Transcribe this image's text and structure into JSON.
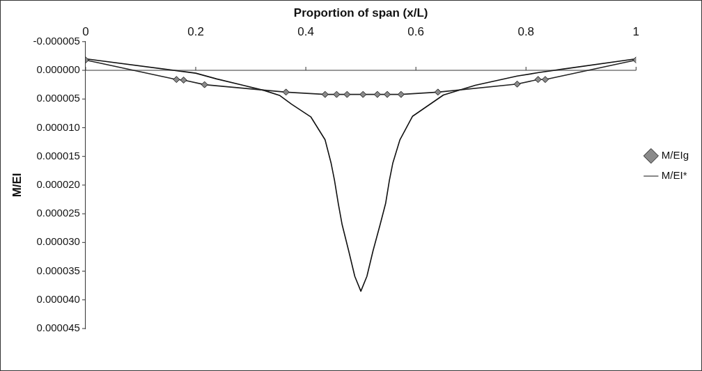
{
  "chart_data": {
    "type": "line",
    "xlabel": "Proportion of span (x/L)",
    "ylabel": "M/EI",
    "xlim": [
      0,
      1
    ],
    "xticks": [
      0,
      0.2,
      0.4,
      0.6,
      0.8,
      1
    ],
    "ylim": [
      4.5e-05,
      -5e-06
    ],
    "yticks": [
      {
        "value": -5e-06,
        "label": "-0.000005"
      },
      {
        "value": 0,
        "label": "0.000000"
      },
      {
        "value": 5e-06,
        "label": "0.000005"
      },
      {
        "value": 1e-05,
        "label": "0.000010"
      },
      {
        "value": 1.5e-05,
        "label": "0.000015"
      },
      {
        "value": 2e-05,
        "label": "0.000020"
      },
      {
        "value": 2.5e-05,
        "label": "0.000025"
      },
      {
        "value": 3e-05,
        "label": "0.000030"
      },
      {
        "value": 3.5e-05,
        "label": "0.000035"
      },
      {
        "value": 4e-05,
        "label": "0.000040"
      },
      {
        "value": 4.5e-05,
        "label": "0.000045"
      }
    ],
    "grid": false,
    "legend": "right",
    "ref_lines": [
      {
        "axis": "y",
        "value": 0,
        "color": "#333333"
      }
    ],
    "series": [
      {
        "name": "M/EIg",
        "color": "#222222",
        "marker": "diamond",
        "x": [
          0,
          0.165,
          0.178,
          0.216,
          0.364,
          0.435,
          0.456,
          0.475,
          0.504,
          0.53,
          0.548,
          0.573,
          0.64,
          0.784,
          0.822,
          0.835,
          1
        ],
        "values": [
          -1.8e-06,
          1.6e-06,
          1.7e-06,
          2.5e-06,
          3.8e-06,
          4.2e-06,
          4.2e-06,
          4.2e-06,
          4.2e-06,
          4.2e-06,
          4.2e-06,
          4.2e-06,
          3.8e-06,
          2.4e-06,
          1.6e-06,
          1.6e-06,
          -1.8e-06
        ]
      },
      {
        "name": "M/EI*",
        "color": "#111111",
        "marker": "none",
        "x": [
          0,
          0.2,
          0.238,
          0.286,
          0.324,
          0.353,
          0.374,
          0.409,
          0.435,
          0.446,
          0.452,
          0.459,
          0.466,
          0.478,
          0.489,
          0.5,
          0.511,
          0.522,
          0.535,
          0.545,
          0.552,
          0.558,
          0.571,
          0.594,
          0.65,
          0.708,
          0.784,
          0.823,
          0.866,
          1
        ],
        "values": [
          -2e-06,
          5e-07,
          1.5e-06,
          2.6e-06,
          3.5e-06,
          4.4e-06,
          5.9e-06,
          8.1e-06,
          1.21e-05,
          1.62e-05,
          1.91e-05,
          2.32e-05,
          2.69e-05,
          3.15e-05,
          3.59e-05,
          3.85e-05,
          3.59e-05,
          3.15e-05,
          2.69e-05,
          2.32e-05,
          1.91e-05,
          1.62e-05,
          1.21e-05,
          8e-06,
          4.3e-06,
          2.6e-06,
          1e-06,
          4e-07,
          -2e-07,
          -2e-06
        ]
      }
    ]
  }
}
